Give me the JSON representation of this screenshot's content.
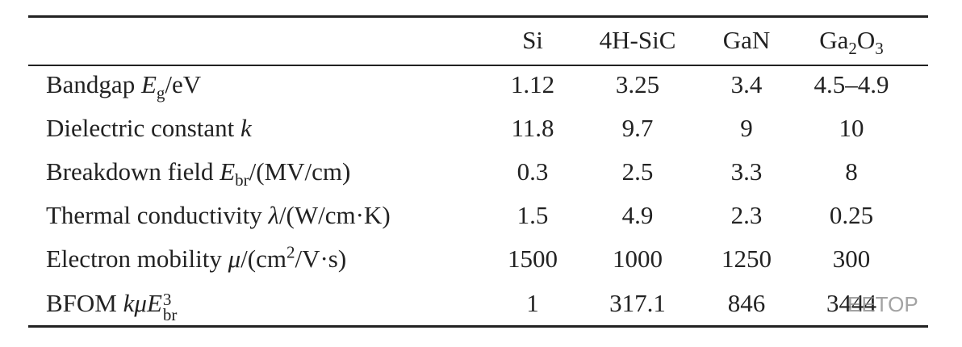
{
  "table": {
    "header": [
      [
        "Si"
      ],
      [
        "4H-SiC"
      ],
      [
        "GaN"
      ],
      [
        "Ga",
        "2",
        "O",
        "3"
      ]
    ],
    "rows": [
      {
        "label": [
          "Bandgap ",
          "E",
          "g",
          "/eV"
        ],
        "values": [
          "1.12",
          "3.25",
          "3.4",
          "4.5–4.9"
        ]
      },
      {
        "label": [
          "Dielectric constant ",
          "k"
        ],
        "values": [
          "11.8",
          "9.7",
          "9",
          "10"
        ]
      },
      {
        "label": [
          "Breakdown field ",
          "E",
          "br",
          "/(MV/cm)"
        ],
        "values": [
          "0.3",
          "2.5",
          "3.3",
          "8"
        ]
      },
      {
        "label": [
          "Thermal conductivity ",
          "λ",
          "/(W/cm·K)"
        ],
        "values": [
          "1.5",
          "4.9",
          "2.3",
          "0.25"
        ]
      },
      {
        "label": [
          "Electron mobility ",
          "μ",
          "/(cm",
          "2",
          "/V·s)"
        ],
        "values": [
          "1500",
          "1000",
          "1250",
          "300"
        ]
      },
      {
        "label": [
          "BFOM ",
          "kμE",
          "3",
          "br"
        ],
        "values": [
          "1",
          "317.1",
          "846",
          "3444"
        ]
      }
    ]
  },
  "watermark": "EETOP"
}
